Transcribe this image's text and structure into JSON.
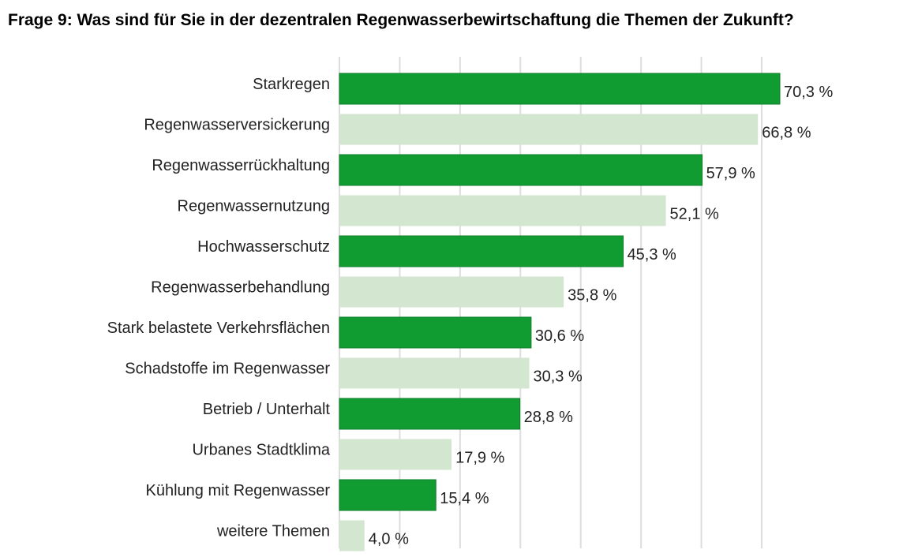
{
  "chart_data": {
    "type": "bar",
    "orientation": "horizontal",
    "title": "Frage 9: Was sind für Sie in der dezentralen Regenwasserbewirtschaftung die Themen der Zukunft?",
    "xlabel": "",
    "ylabel": "",
    "xlim": [
      0,
      70.3
    ],
    "grid": true,
    "categories": [
      "Starkregen",
      "Regenwasserversickerung",
      "Regenwasserrückhaltung",
      "Regenwassernutzung",
      "Hochwasserschutz",
      "Regenwasserbehandlung",
      "Stark belastete Verkehrsflächen",
      "Schadstoffe im Regenwasser",
      "Betrieb / Unterhalt",
      "Urbanes Stadtklima",
      "Kühlung mit Regenwasser",
      "weitere Themen"
    ],
    "values": [
      70.3,
      66.8,
      57.9,
      52.1,
      45.3,
      35.8,
      30.6,
      30.3,
      28.8,
      17.9,
      15.4,
      4.0
    ],
    "value_labels": [
      "70,3 %",
      "66,8 %",
      "57,9 %",
      "52,1 %",
      "45,3 %",
      "35,8 %",
      "30,6 %",
      "30,3 %",
      "28,8 %",
      "17,9 %",
      "15,4 %",
      "4,0 %"
    ],
    "colors": {
      "dark": "#119c32",
      "light": "#d3e6cf",
      "grid": "#dddddd"
    }
  }
}
